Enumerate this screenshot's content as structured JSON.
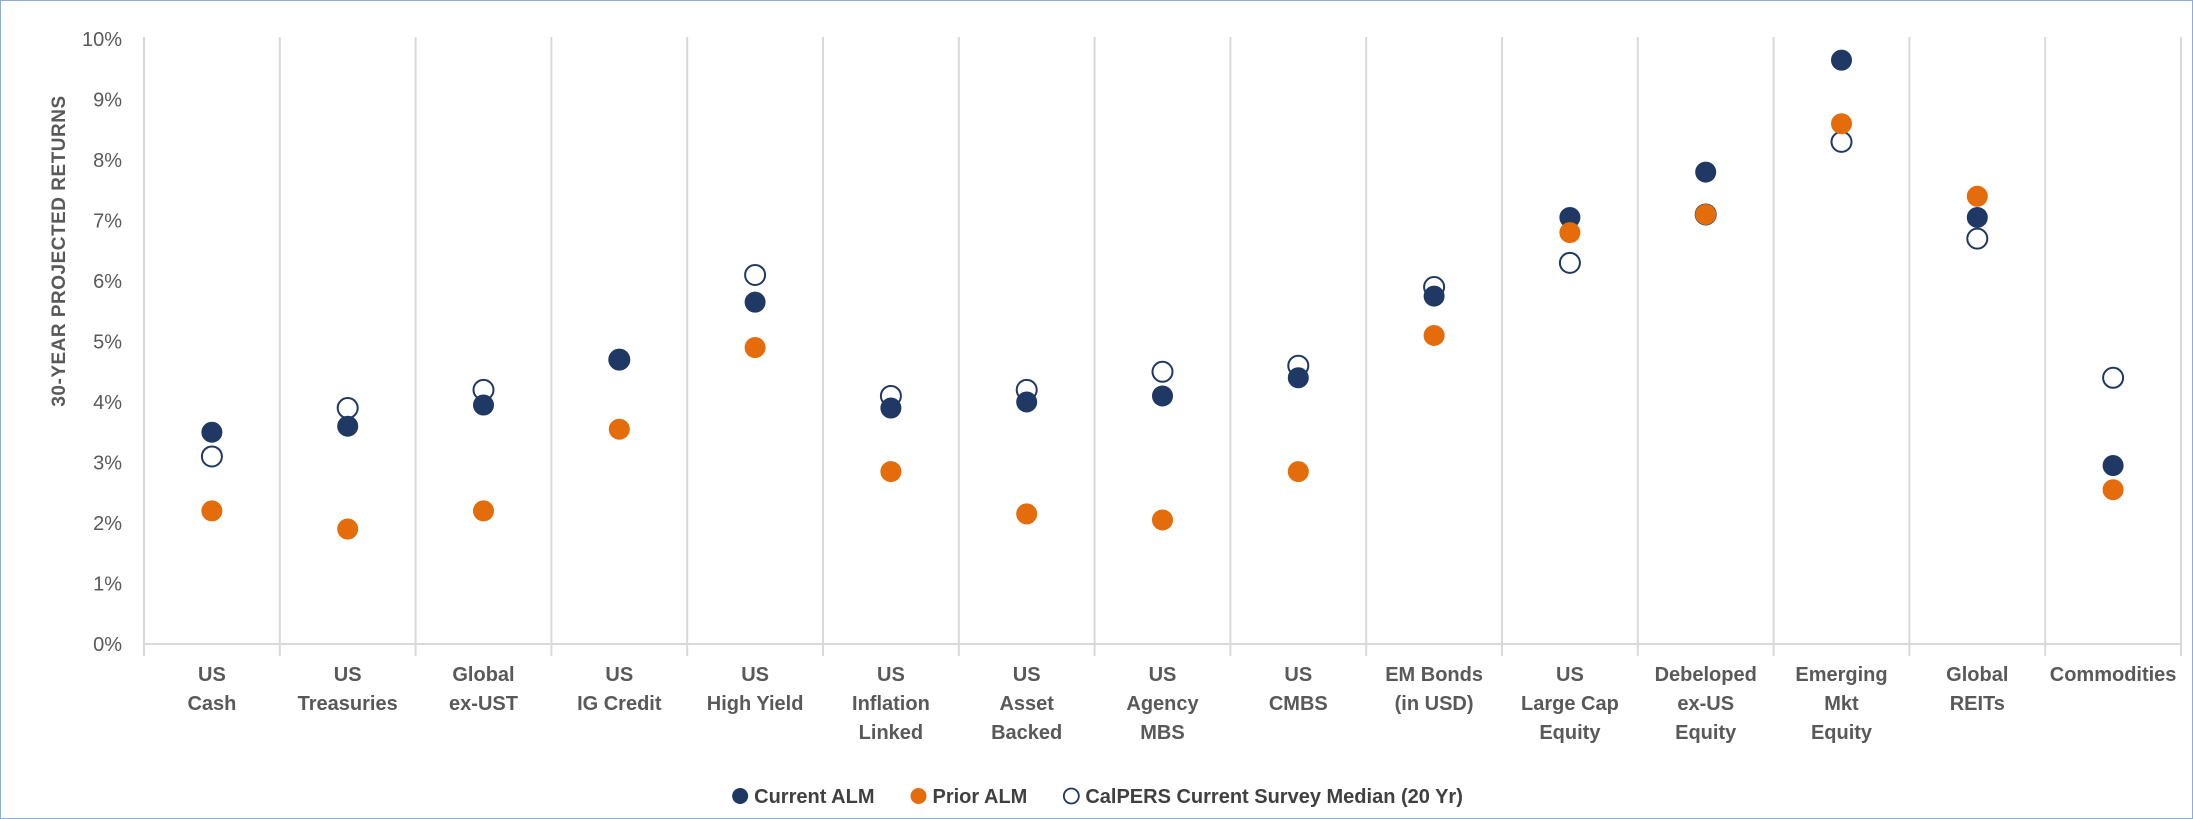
{
  "chart_data": {
    "type": "scatter",
    "title": "",
    "ylabel": "30-YEAR PROJECTED RETURNS",
    "xlabel": "",
    "ylim": [
      0,
      10
    ],
    "ytick_step": 1,
    "ytick_format": "percent",
    "grid": "vertical category separators",
    "legend_position": "bottom-center",
    "categories": [
      [
        "US",
        "Cash"
      ],
      [
        "US",
        "Treasuries"
      ],
      [
        "Global",
        "ex-UST"
      ],
      [
        "US",
        "IG Credit"
      ],
      [
        "US",
        "High Yield"
      ],
      [
        "US",
        "Inflation",
        "Linked"
      ],
      [
        "US",
        "Asset",
        "Backed"
      ],
      [
        "US",
        "Agency",
        "MBS"
      ],
      [
        "US",
        "CMBS"
      ],
      [
        "EM Bonds",
        "(in USD)"
      ],
      [
        "US",
        "Large Cap",
        "Equity"
      ],
      [
        "Debeloped",
        "ex-US",
        "Equity"
      ],
      [
        "Emerging",
        "Mkt",
        "Equity"
      ],
      [
        "Global",
        "REITs"
      ],
      [
        "Commodities"
      ]
    ],
    "series": [
      {
        "name": "Current ALM",
        "color": "#1f3864",
        "marker": "filled-circle",
        "values": [
          3.5,
          3.6,
          3.95,
          4.7,
          5.65,
          3.9,
          4.0,
          4.1,
          4.4,
          5.75,
          7.05,
          7.8,
          9.65,
          7.05,
          2.95
        ]
      },
      {
        "name": "Prior ALM",
        "color": "#e46c0a",
        "marker": "filled-circle",
        "values": [
          2.2,
          1.9,
          2.2,
          3.55,
          4.9,
          2.85,
          2.15,
          2.05,
          2.85,
          5.1,
          6.8,
          7.1,
          8.6,
          7.4,
          2.55
        ]
      },
      {
        "name": "CalPERS Current Survey Median (20 Yr)",
        "color": "#1f3864",
        "marker": "hollow-circle",
        "values": [
          3.1,
          3.9,
          4.2,
          4.7,
          6.1,
          4.1,
          4.2,
          4.5,
          4.6,
          5.9,
          6.3,
          7.1,
          8.3,
          6.7,
          4.4
        ]
      }
    ]
  }
}
